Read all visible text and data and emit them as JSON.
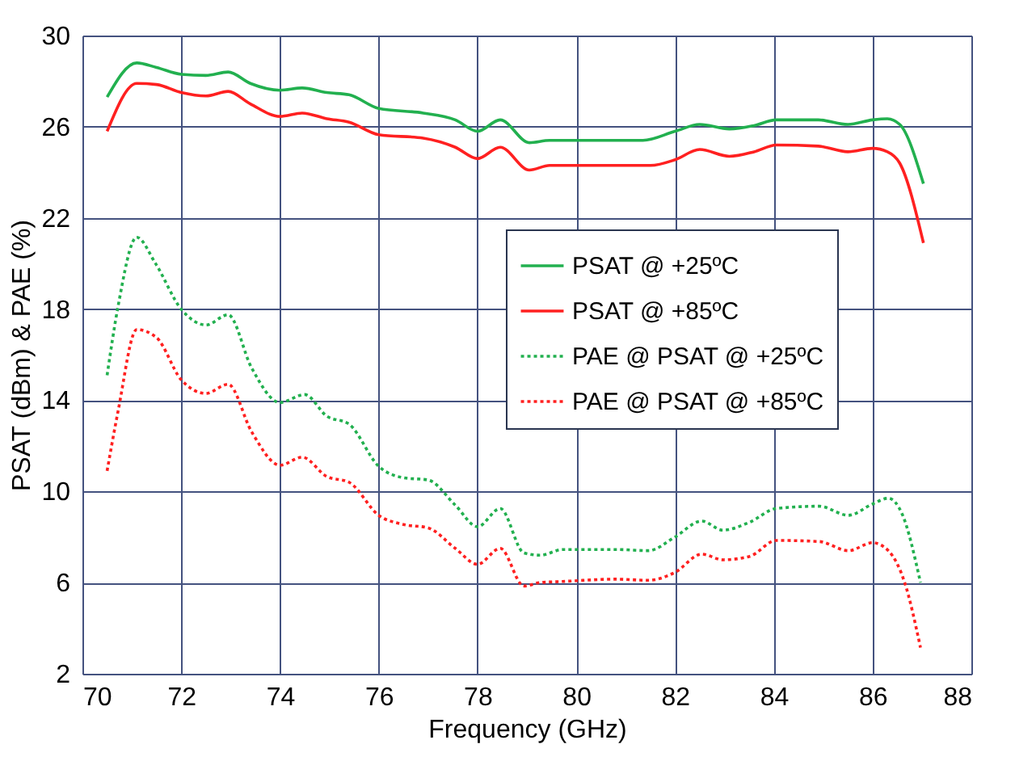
{
  "chart_data": {
    "type": "line",
    "xlabel": "Frequency (GHz)",
    "ylabel": "PSAT (dBm) & PAE (%)",
    "xlim": [
      70,
      88
    ],
    "xticks": [
      70,
      72,
      74,
      76,
      78,
      80,
      82,
      84,
      86,
      88
    ],
    "ylim": [
      2,
      30
    ],
    "yticks": [
      2,
      6,
      10,
      14,
      18,
      22,
      26,
      30
    ],
    "grid": true,
    "legend": "right",
    "marker": "none",
    "series": [
      {
        "name": "PSAT @ +25ºC",
        "color": "#22b04f",
        "line_style": "solid",
        "x": [
          70.5,
          71.1,
          71.5,
          72,
          72.5,
          72.95,
          73.4,
          74,
          74.45,
          74.95,
          75.4,
          76,
          76.9,
          77.55,
          78,
          78.46,
          79.05,
          79.46,
          80,
          81.35,
          82,
          82.5,
          83.1,
          83.6,
          84.05,
          84.9,
          85.5,
          86,
          86.3,
          86.55,
          87.03
        ],
        "values": [
          27.3,
          28.8,
          28.6,
          28.3,
          28.25,
          28.4,
          27.9,
          27.6,
          27.7,
          27.5,
          27.4,
          26.8,
          26.6,
          26.3,
          25.8,
          26.3,
          25.3,
          25.4,
          25.4,
          25.4,
          25.8,
          26.1,
          25.9,
          26.05,
          26.3,
          26.3,
          26.1,
          26.3,
          26.35,
          26.1,
          23.5
        ]
      },
      {
        "name": "PSAT @ +85ºC",
        "color": "#ff2020",
        "line_style": "solid",
        "x": [
          70.5,
          71.1,
          71.5,
          72,
          72.5,
          72.95,
          73.4,
          74,
          74.45,
          74.95,
          75.4,
          76,
          76.9,
          77.55,
          78,
          78.46,
          79.05,
          79.46,
          80,
          81.5,
          82,
          82.5,
          83.1,
          83.6,
          84.05,
          84.9,
          85.5,
          86,
          86.3,
          86.55,
          87.03
        ],
        "values": [
          25.8,
          27.9,
          27.85,
          27.5,
          27.35,
          27.55,
          27.0,
          26.45,
          26.6,
          26.35,
          26.2,
          25.65,
          25.5,
          25.1,
          24.6,
          25.1,
          24.1,
          24.3,
          24.3,
          24.3,
          24.55,
          25.0,
          24.7,
          24.9,
          25.2,
          25.15,
          24.9,
          25.05,
          24.9,
          24.4,
          20.9
        ]
      },
      {
        "name": "PAE @ PSAT @ +25ºC",
        "color": "#22b04f",
        "line_style": "dotted",
        "x": [
          70.5,
          70.72,
          71.1,
          71.48,
          72,
          72.5,
          72.95,
          73.43,
          74,
          74.5,
          74.95,
          75.4,
          76,
          76.5,
          77,
          77.55,
          78,
          78.46,
          78.94,
          79.27,
          79.73,
          80.81,
          81.46,
          82,
          82.54,
          82.97,
          83.51,
          84.05,
          84.92,
          85.51,
          86,
          86.32,
          86.6,
          86.97
        ],
        "values": [
          15.1,
          18.1,
          21.15,
          20.0,
          18.0,
          17.3,
          17.75,
          15.4,
          13.9,
          14.25,
          13.3,
          12.95,
          11.1,
          10.6,
          10.5,
          9.4,
          8.45,
          9.25,
          7.3,
          7.2,
          7.45,
          7.45,
          7.4,
          8.0,
          8.7,
          8.3,
          8.65,
          9.25,
          9.35,
          8.95,
          9.45,
          9.7,
          9.0,
          6.0
        ]
      },
      {
        "name": "PAE @ PSAT @ +85ºC",
        "color": "#ff2020",
        "line_style": "dotted",
        "x": [
          70.5,
          70.72,
          71.1,
          71.5,
          72,
          72.5,
          72.95,
          73.43,
          74,
          74.45,
          74.95,
          75.4,
          76,
          76.5,
          77,
          77.55,
          78,
          78.46,
          78.94,
          79.27,
          79.73,
          80.81,
          81.46,
          82,
          82.54,
          82.97,
          83.51,
          84.05,
          84.92,
          85.51,
          86,
          86.32,
          86.65,
          86.97
        ],
        "values": [
          10.9,
          13.5,
          17.1,
          16.75,
          14.9,
          14.3,
          14.7,
          12.6,
          11.15,
          11.5,
          10.65,
          10.4,
          8.95,
          8.55,
          8.4,
          7.5,
          6.8,
          7.5,
          5.85,
          6.0,
          6.05,
          6.15,
          6.1,
          6.45,
          7.25,
          7.0,
          7.15,
          7.85,
          7.8,
          7.4,
          7.75,
          7.4,
          6.0,
          3.15
        ]
      }
    ]
  }
}
